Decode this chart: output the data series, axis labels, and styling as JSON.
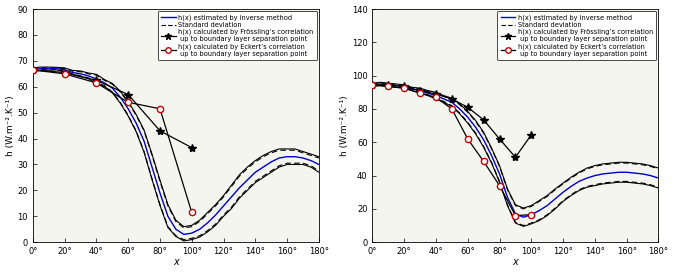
{
  "left": {
    "ylim": [
      0,
      90
    ],
    "yticks": [
      0,
      10,
      20,
      30,
      40,
      50,
      60,
      70,
      80,
      90
    ],
    "ylabel": "h (W.m⁻².K⁻¹)",
    "xlabel": "x",
    "xticks": [
      0,
      20,
      40,
      60,
      80,
      100,
      120,
      140,
      160,
      180
    ],
    "main_x": [
      0,
      5,
      10,
      15,
      20,
      25,
      30,
      35,
      40,
      45,
      50,
      55,
      60,
      65,
      70,
      75,
      80,
      85,
      90,
      95,
      100,
      105,
      110,
      115,
      120,
      125,
      130,
      135,
      140,
      145,
      150,
      155,
      160,
      165,
      170,
      175,
      180
    ],
    "main_y": [
      66.5,
      67.0,
      67.0,
      67.0,
      66.5,
      65.5,
      65.0,
      64.2,
      63.0,
      61.5,
      59.5,
      56.0,
      51.5,
      46.0,
      39.0,
      29.0,
      19.0,
      10.0,
      5.0,
      3.0,
      3.5,
      5.0,
      7.5,
      10.5,
      14.0,
      17.5,
      21.0,
      24.0,
      27.0,
      29.0,
      31.0,
      32.5,
      33.0,
      33.0,
      32.5,
      31.5,
      30.0
    ],
    "upper_y": [
      67.0,
      67.3,
      67.3,
      67.2,
      67.0,
      66.0,
      65.8,
      65.0,
      64.5,
      62.5,
      61.0,
      58.0,
      54.0,
      49.0,
      43.0,
      33.5,
      23.5,
      14.0,
      8.0,
      5.5,
      6.0,
      8.0,
      11.0,
      14.0,
      17.5,
      21.5,
      25.5,
      28.5,
      31.0,
      33.0,
      34.5,
      35.5,
      35.5,
      35.5,
      34.5,
      33.5,
      32.5
    ],
    "lower_y": [
      66.0,
      66.7,
      66.7,
      66.8,
      66.0,
      65.0,
      64.2,
      63.4,
      61.5,
      60.5,
      58.0,
      54.0,
      49.0,
      43.0,
      35.0,
      24.5,
      14.5,
      6.0,
      2.5,
      1.0,
      1.5,
      2.5,
      4.5,
      7.0,
      10.5,
      13.5,
      17.5,
      20.5,
      23.5,
      25.5,
      27.5,
      29.5,
      30.5,
      30.5,
      30.5,
      29.5,
      27.5
    ],
    "outer_upper_y": [
      67.3,
      67.6,
      67.6,
      67.5,
      67.3,
      66.3,
      66.1,
      65.3,
      64.8,
      62.8,
      61.3,
      58.3,
      54.3,
      49.3,
      43.3,
      34.0,
      24.0,
      14.5,
      8.5,
      6.0,
      6.5,
      8.5,
      11.5,
      14.5,
      18.0,
      22.0,
      26.0,
      29.0,
      31.5,
      33.5,
      35.0,
      36.0,
      36.0,
      36.0,
      35.0,
      34.0,
      33.0
    ],
    "outer_lower_y": [
      65.7,
      66.4,
      66.4,
      66.5,
      65.7,
      64.7,
      63.9,
      63.1,
      61.2,
      60.2,
      57.7,
      53.7,
      48.7,
      42.7,
      34.7,
      24.2,
      14.2,
      5.7,
      2.2,
      0.5,
      1.0,
      2.0,
      4.0,
      6.5,
      10.0,
      13.0,
      17.0,
      20.0,
      23.0,
      25.0,
      27.0,
      29.0,
      30.0,
      30.0,
      30.0,
      29.0,
      27.0
    ],
    "fross_x": [
      0,
      20,
      40,
      60,
      80,
      100
    ],
    "fross_y": [
      66.5,
      65.5,
      62.5,
      57.0,
      43.0,
      36.5
    ],
    "eckert_x": [
      0,
      20,
      40,
      60,
      80,
      100
    ],
    "eckert_y": [
      66.5,
      65.0,
      61.5,
      54.0,
      51.5,
      11.5
    ]
  },
  "right": {
    "ylim": [
      0,
      140
    ],
    "yticks": [
      0,
      20,
      40,
      60,
      80,
      100,
      120,
      140
    ],
    "ylabel": "h (W.m⁻².K⁻¹)",
    "xlabel": "x",
    "xticks": [
      0,
      20,
      40,
      60,
      80,
      100,
      120,
      140,
      160,
      180
    ],
    "main_x": [
      0,
      5,
      10,
      15,
      20,
      25,
      30,
      35,
      40,
      45,
      50,
      55,
      60,
      65,
      70,
      75,
      80,
      85,
      90,
      95,
      100,
      105,
      110,
      115,
      120,
      125,
      130,
      135,
      140,
      145,
      150,
      155,
      160,
      165,
      170,
      175,
      180
    ],
    "main_y": [
      94.5,
      95.0,
      94.5,
      94.0,
      93.5,
      92.0,
      91.0,
      89.5,
      88.0,
      86.0,
      84.0,
      80.0,
      75.0,
      69.0,
      61.5,
      52.0,
      41.0,
      27.0,
      17.0,
      15.0,
      16.5,
      19.0,
      22.0,
      26.0,
      30.0,
      33.5,
      36.5,
      38.5,
      40.0,
      41.0,
      41.5,
      42.0,
      42.0,
      41.5,
      41.0,
      40.0,
      38.5
    ],
    "upper_y": [
      95.0,
      95.5,
      95.0,
      94.5,
      94.0,
      92.5,
      92.0,
      90.5,
      89.5,
      87.5,
      86.0,
      82.5,
      78.0,
      72.5,
      65.5,
      56.0,
      45.5,
      31.5,
      22.0,
      20.0,
      21.5,
      24.5,
      27.5,
      31.5,
      35.0,
      38.5,
      41.5,
      44.0,
      45.5,
      46.5,
      47.0,
      47.5,
      47.5,
      47.0,
      46.5,
      45.5,
      44.0
    ],
    "lower_y": [
      94.0,
      94.5,
      94.0,
      93.5,
      93.0,
      91.5,
      90.0,
      88.5,
      86.5,
      84.5,
      82.0,
      77.5,
      72.0,
      65.5,
      57.5,
      48.0,
      36.5,
      22.5,
      12.0,
      10.0,
      11.5,
      13.5,
      16.5,
      20.5,
      25.0,
      28.5,
      31.5,
      33.5,
      34.5,
      35.5,
      36.0,
      36.5,
      36.5,
      36.0,
      35.5,
      34.5,
      33.0
    ],
    "outer_upper_y": [
      95.5,
      96.0,
      95.5,
      95.0,
      94.5,
      93.0,
      92.5,
      91.0,
      90.0,
      88.0,
      86.5,
      83.0,
      78.5,
      73.0,
      66.0,
      56.5,
      46.0,
      32.0,
      22.5,
      20.5,
      22.0,
      25.0,
      28.0,
      32.0,
      35.5,
      39.0,
      42.0,
      44.5,
      46.0,
      47.0,
      47.5,
      48.0,
      48.0,
      47.5,
      47.0,
      46.0,
      44.5
    ],
    "outer_lower_y": [
      93.5,
      94.0,
      93.5,
      93.0,
      92.5,
      91.0,
      89.5,
      88.0,
      86.0,
      84.0,
      81.5,
      77.0,
      71.5,
      65.0,
      57.0,
      47.5,
      36.0,
      22.0,
      11.5,
      9.5,
      11.0,
      13.0,
      16.0,
      20.0,
      24.5,
      28.0,
      31.0,
      33.0,
      34.0,
      35.0,
      35.5,
      36.0,
      36.0,
      35.5,
      35.0,
      34.0,
      32.5
    ],
    "fross_x": [
      0,
      10,
      20,
      30,
      40,
      50,
      60,
      70,
      80,
      90,
      100
    ],
    "fross_y": [
      94.5,
      94.5,
      93.5,
      91.0,
      89.0,
      86.0,
      81.0,
      73.5,
      62.0,
      51.0,
      64.5
    ],
    "eckert_x": [
      0,
      10,
      20,
      30,
      40,
      50,
      60,
      70,
      80,
      90,
      100
    ],
    "eckert_y": [
      94.5,
      93.5,
      92.5,
      89.5,
      87.0,
      80.0,
      62.0,
      48.5,
      34.0,
      16.0,
      16.5
    ]
  },
  "legend_labels": [
    "h(x) estimated by inverse method",
    "Standard deviation",
    "h(x) calculated by Frössling’s correlation\n up to boundary layer separation point",
    "h(x) calculated by Eckert’s correlation\n up to boundary layer separation point"
  ],
  "blue_color": "#0000cd",
  "black_color": "#000000",
  "red_color": "#cc0000"
}
